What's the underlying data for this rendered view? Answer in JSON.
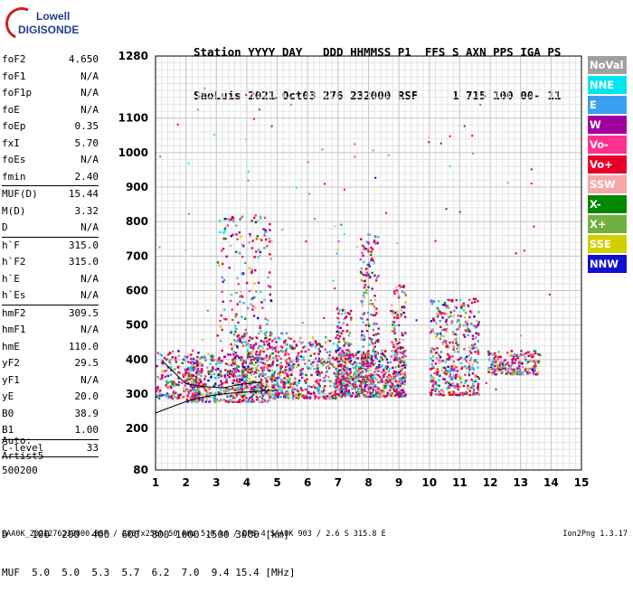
{
  "logo": {
    "line1": "Lowell",
    "line2": "DIGISONDE"
  },
  "header": {
    "row1": "Station YYYY DAY   DDD HHMMSS P1  FFS S AXN PPS IGA PS",
    "row2": "SaoLuis 2021 Oct03 276 232000 RSF     1 715 100 00- 11"
  },
  "params_groups": [
    [
      {
        "name": "foF2",
        "value": "4.650"
      },
      {
        "name": "foF1",
        "value": "N/A"
      },
      {
        "name": "foF1p",
        "value": "N/A"
      },
      {
        "name": "foE",
        "value": "N/A"
      },
      {
        "name": "foEp",
        "value": "0.35"
      },
      {
        "name": "fxI",
        "value": "5.70"
      },
      {
        "name": "foEs",
        "value": "N/A"
      },
      {
        "name": "fmin",
        "value": "2.40"
      }
    ],
    [
      {
        "name": "MUF(D)",
        "value": "15.44"
      },
      {
        "name": "M(D)",
        "value": "3.32"
      },
      {
        "name": "D",
        "value": "N/A"
      }
    ],
    [
      {
        "name": "h`F",
        "value": "315.0"
      },
      {
        "name": "h`F2",
        "value": "315.0"
      },
      {
        "name": "h`E",
        "value": "N/A"
      },
      {
        "name": "h`Es",
        "value": "N/A"
      }
    ],
    [
      {
        "name": "hmF2",
        "value": "309.5"
      },
      {
        "name": "hmF1",
        "value": "N/A"
      },
      {
        "name": "hmE",
        "value": "110.0"
      },
      {
        "name": "yF2",
        "value": "29.5"
      },
      {
        "name": "yF1",
        "value": "N/A"
      },
      {
        "name": "yE",
        "value": "20.0"
      },
      {
        "name": "B0",
        "value": "38.9"
      },
      {
        "name": "B1",
        "value": "1.00"
      }
    ],
    [
      {
        "name": "C-level",
        "value": "33"
      }
    ]
  ],
  "auto": {
    "line1": "Auto:",
    "line2": "Artist5",
    "line3": "500200"
  },
  "legend": [
    {
      "label": "NoVal",
      "color": "#a0a0a0"
    },
    {
      "label": "NNE",
      "color": "#00e5ee"
    },
    {
      "label": "E",
      "color": "#3ba0f0"
    },
    {
      "label": "W",
      "color": "#a000a0"
    },
    {
      "label": "Vo-",
      "color": "#ff3090"
    },
    {
      "label": "Vo+",
      "color": "#e8002a"
    },
    {
      "label": "SSW",
      "color": "#f5a8a8"
    },
    {
      "label": "X-",
      "color": "#008800"
    },
    {
      "label": "X+",
      "color": "#70b040"
    },
    {
      "label": "SSE",
      "color": "#d0d000"
    },
    {
      "label": "NNW",
      "color": "#1010d0"
    }
  ],
  "dmuf": {
    "d_row": "D    100  200  400  600  800 1000 1500 3000 [km]",
    "muf_row": "MUF  5.0  5.0  5.3  5.7  6.2  7.0  9.4 15.4 [MHz]"
  },
  "footer": {
    "left": "SAA0K_2021276232000.RSF / 280fx256h 50 kHz 5.0 km / DPS-4 SAA0K 903 / 2.6 S 315.8 E",
    "right": "Ion2Png 1.3.17"
  },
  "chart_data": {
    "type": "scatter",
    "xlim": [
      1,
      15
    ],
    "ylim": [
      80,
      1280
    ],
    "x_ticks": [
      1,
      2,
      3,
      4,
      5,
      6,
      7,
      8,
      9,
      10,
      11,
      12,
      13,
      14,
      15
    ],
    "y_ticks": [
      80,
      200,
      300,
      400,
      500,
      600,
      700,
      800,
      900,
      1000,
      1100,
      1280
    ],
    "grid": true,
    "clusters": [
      {
        "x_range": [
          1.0,
          2.5
        ],
        "y_range": [
          290,
          430
        ],
        "density": 220
      },
      {
        "x_range": [
          2.0,
          4.8
        ],
        "y_range": [
          280,
          420
        ],
        "density": 520
      },
      {
        "x_range": [
          3.0,
          4.8
        ],
        "y_range": [
          420,
          830
        ],
        "density": 200
      },
      {
        "x_range": [
          3.5,
          5.5
        ],
        "y_range": [
          300,
          480
        ],
        "density": 260
      },
      {
        "x_range": [
          4.8,
          7.0
        ],
        "y_range": [
          290,
          470
        ],
        "density": 380
      },
      {
        "x_range": [
          6.9,
          7.4
        ],
        "y_range": [
          300,
          560
        ],
        "density": 160
      },
      {
        "x_range": [
          7.0,
          9.2
        ],
        "y_range": [
          295,
          430
        ],
        "density": 520
      },
      {
        "x_range": [
          7.7,
          8.3
        ],
        "y_range": [
          320,
          780
        ],
        "density": 200
      },
      {
        "x_range": [
          8.7,
          9.2
        ],
        "y_range": [
          300,
          620
        ],
        "density": 120
      },
      {
        "x_range": [
          10.0,
          11.6
        ],
        "y_range": [
          300,
          580
        ],
        "density": 420
      },
      {
        "x_range": [
          11.9,
          13.6
        ],
        "y_range": [
          360,
          430
        ],
        "density": 200
      }
    ],
    "trace_line": {
      "x": [
        1,
        1.5,
        2,
        2.5,
        3,
        3.5,
        4,
        4.5,
        5
      ],
      "y": [
        245,
        262,
        278,
        290,
        298,
        303,
        306,
        309,
        312
      ]
    },
    "trace_line2": {
      "x": [
        1.2,
        2,
        2.6,
        3.2,
        3.8,
        4.5
      ],
      "y": [
        398,
        330,
        322,
        318,
        328,
        335
      ]
    }
  }
}
